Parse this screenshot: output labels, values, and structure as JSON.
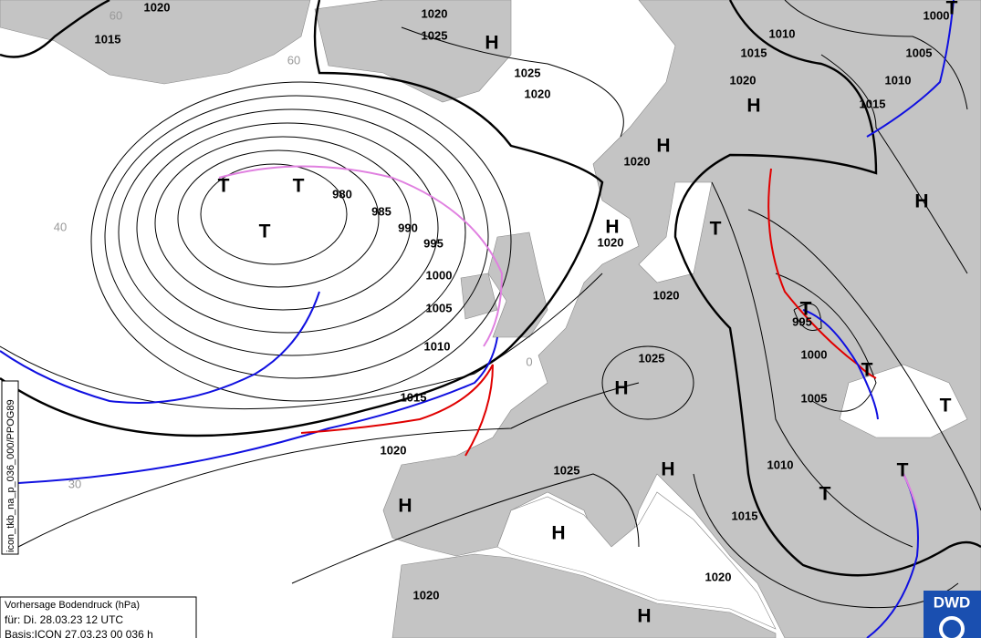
{
  "isobar_labels": [
    "1020",
    "1015",
    "1020",
    "1025",
    "1025",
    "1020",
    "1010",
    "1015",
    "1020",
    "1005",
    "1010",
    "1015",
    "1000",
    "1020",
    "1020",
    "1020",
    "980",
    "985",
    "990",
    "995",
    "1000",
    "1005",
    "1010",
    "1015",
    "1020",
    "1025",
    "995",
    "1000",
    "1005",
    "1010",
    "1025",
    "1015",
    "1020",
    "1020"
  ],
  "highs": [
    "H",
    "H",
    "H",
    "H",
    "H",
    "H",
    "H",
    "H",
    "H",
    "H"
  ],
  "lows": [
    "T",
    "T",
    "T",
    "T",
    "T",
    "T",
    "T",
    "T",
    "T",
    "T"
  ],
  "latitude_labels": [
    "60",
    "60",
    "40",
    "30",
    "0"
  ],
  "info_box": {
    "title": "Vorhersage Bodendruck (hPa)",
    "valid": "für:  Di. 28.03.23  12 UTC",
    "base": "Basis:ICON  27.03.23 00  036 h"
  },
  "product_id": "icon_tkb_na_p_036_000/PPOG89",
  "logo": "DWD"
}
